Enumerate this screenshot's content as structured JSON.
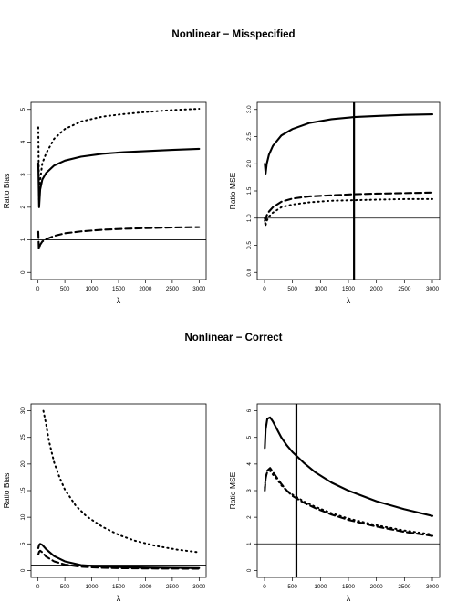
{
  "sections": [
    {
      "title": "Nonlinear − Misspecified"
    },
    {
      "title": "Nonlinear − Correct"
    }
  ],
  "chart_data": [
    {
      "type": "line",
      "xlabel": "λ",
      "ylabel": "Ratio Bias",
      "xlim": [
        0,
        3000
      ],
      "ylim": [
        0,
        5
      ],
      "xticks": [
        "0",
        "500",
        "1000",
        "1500",
        "2000",
        "2500",
        "3000"
      ],
      "yticks": [
        "0",
        "1",
        "2",
        "3",
        "4",
        "5"
      ],
      "hline": 1,
      "series": [
        {
          "style": "solid",
          "x": [
            5,
            20,
            40,
            80,
            150,
            300,
            500,
            800,
            1200,
            1600,
            2000,
            2500,
            3000
          ],
          "y": [
            3.35,
            2.0,
            2.55,
            2.85,
            3.05,
            3.28,
            3.43,
            3.55,
            3.64,
            3.69,
            3.72,
            3.76,
            3.79
          ]
        },
        {
          "style": "dashed",
          "x": [
            5,
            15,
            40,
            80,
            150,
            300,
            500,
            800,
            1200,
            1600,
            2000,
            2500,
            3000
          ],
          "y": [
            1.25,
            0.72,
            0.85,
            0.95,
            1.02,
            1.12,
            1.2,
            1.26,
            1.31,
            1.34,
            1.36,
            1.38,
            1.39
          ]
        },
        {
          "style": "dotted",
          "x": [
            5,
            20,
            40,
            80,
            150,
            300,
            500,
            800,
            1200,
            1600,
            2000,
            2500,
            3000
          ],
          "y": [
            4.45,
            2.2,
            2.85,
            3.35,
            3.65,
            4.1,
            4.4,
            4.63,
            4.78,
            4.86,
            4.92,
            4.98,
            5.02
          ]
        }
      ]
    },
    {
      "type": "line",
      "xlabel": "λ",
      "ylabel": "Ratio MSE",
      "xlim": [
        0,
        3000
      ],
      "ylim": [
        0,
        3
      ],
      "xticks": [
        "0",
        "500",
        "1000",
        "1500",
        "2000",
        "2500",
        "3000"
      ],
      "yticks": [
        "0.0",
        "0.5",
        "1.0",
        "1.5",
        "2.0",
        "2.5",
        "3.0"
      ],
      "hline": 1,
      "vline": 1600,
      "series": [
        {
          "style": "solid",
          "x": [
            5,
            20,
            40,
            80,
            150,
            300,
            500,
            800,
            1200,
            1600,
            2000,
            2500,
            3000
          ],
          "y": [
            2.0,
            1.82,
            2.0,
            2.17,
            2.33,
            2.52,
            2.64,
            2.75,
            2.82,
            2.86,
            2.88,
            2.9,
            2.91
          ]
        },
        {
          "style": "dashed",
          "x": [
            5,
            20,
            40,
            80,
            150,
            300,
            500,
            800,
            1200,
            1600,
            2000,
            2500,
            3000
          ],
          "y": [
            0.95,
            0.97,
            1.05,
            1.12,
            1.2,
            1.3,
            1.36,
            1.4,
            1.42,
            1.44,
            1.45,
            1.46,
            1.47
          ]
        },
        {
          "style": "dotted",
          "x": [
            5,
            15,
            40,
            80,
            150,
            300,
            500,
            800,
            1200,
            1600,
            2000,
            2500,
            3000
          ],
          "y": [
            1.0,
            0.85,
            0.95,
            1.03,
            1.1,
            1.2,
            1.25,
            1.29,
            1.32,
            1.33,
            1.34,
            1.35,
            1.35
          ]
        }
      ]
    },
    {
      "type": "line",
      "xlabel": "λ",
      "ylabel": "Ratio Bias",
      "xlim": [
        0,
        3000
      ],
      "ylim": [
        0,
        30
      ],
      "xticks": [
        "0",
        "500",
        "1000",
        "1500",
        "2000",
        "2500",
        "3000"
      ],
      "yticks": [
        "0",
        "5",
        "10",
        "15",
        "20",
        "25",
        "30"
      ],
      "hline": 1,
      "series": [
        {
          "style": "solid",
          "x": [
            5,
            20,
            40,
            80,
            150,
            300,
            500,
            800,
            1200,
            1600,
            2000,
            2500,
            3000
          ],
          "y": [
            4.2,
            4.8,
            5.0,
            4.8,
            4.0,
            2.7,
            1.7,
            1.0,
            0.72,
            0.62,
            0.55,
            0.5,
            0.45
          ]
        },
        {
          "style": "dashed",
          "x": [
            5,
            20,
            40,
            80,
            150,
            300,
            500,
            800,
            1200,
            1600,
            2000,
            2500,
            3000
          ],
          "y": [
            3.0,
            3.5,
            3.7,
            3.4,
            2.6,
            1.7,
            1.1,
            0.7,
            0.5,
            0.42,
            0.38,
            0.35,
            0.33
          ]
        },
        {
          "style": "dotted",
          "x": [
            100,
            150,
            200,
            300,
            400,
            500,
            700,
            900,
            1200,
            1500,
            1800,
            2200,
            2600,
            3000
          ],
          "y": [
            30,
            27.5,
            24.5,
            20.3,
            17.5,
            15.2,
            12.2,
            10.2,
            8.2,
            6.7,
            5.6,
            4.6,
            3.9,
            3.4
          ]
        }
      ]
    },
    {
      "type": "line",
      "xlabel": "λ",
      "ylabel": "Ratio MSE",
      "xlim": [
        0,
        3000
      ],
      "ylim": [
        0,
        6
      ],
      "xticks": [
        "0",
        "500",
        "1000",
        "1500",
        "2000",
        "2500",
        "3000"
      ],
      "yticks": [
        "0",
        "1",
        "2",
        "3",
        "4",
        "5",
        "6"
      ],
      "hline": 1,
      "vline": 570,
      "series": [
        {
          "style": "solid",
          "x": [
            5,
            20,
            50,
            100,
            150,
            200,
            300,
            400,
            500,
            700,
            900,
            1200,
            1500,
            2000,
            2500,
            3000
          ],
          "y": [
            4.6,
            5.3,
            5.7,
            5.75,
            5.6,
            5.4,
            5.0,
            4.7,
            4.45,
            4.05,
            3.7,
            3.3,
            3.0,
            2.6,
            2.3,
            2.05
          ]
        },
        {
          "style": "dashed",
          "x": [
            5,
            20,
            50,
            100,
            150,
            200,
            300,
            400,
            500,
            700,
            900,
            1200,
            1500,
            2000,
            2500,
            3000
          ],
          "y": [
            3.0,
            3.45,
            3.75,
            3.85,
            3.7,
            3.55,
            3.25,
            3.0,
            2.8,
            2.55,
            2.35,
            2.1,
            1.9,
            1.65,
            1.45,
            1.3
          ]
        },
        {
          "style": "dotted",
          "x": [
            5,
            20,
            50,
            100,
            150,
            200,
            300,
            400,
            500,
            700,
            900,
            1200,
            1500,
            2000,
            2500,
            3000
          ],
          "y": [
            3.1,
            3.5,
            3.7,
            3.75,
            3.6,
            3.5,
            3.2,
            3.0,
            2.85,
            2.6,
            2.4,
            2.15,
            1.95,
            1.7,
            1.5,
            1.35
          ]
        }
      ]
    }
  ]
}
